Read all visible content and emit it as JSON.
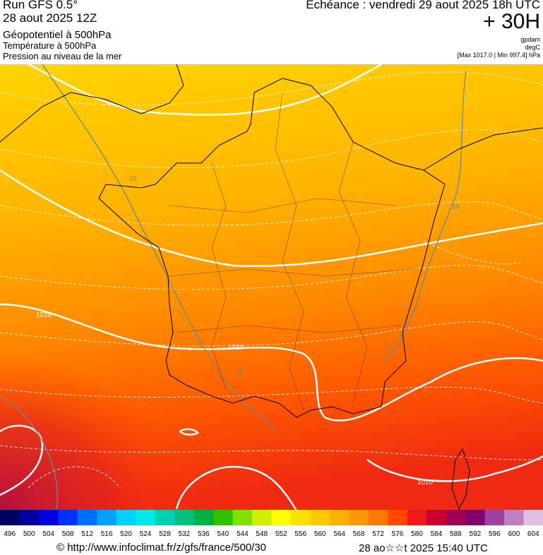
{
  "header": {
    "run": "Run GFS 0.5°",
    "date": "28 aout 2025 12Z",
    "field1": "Géopotentiel à 500hPa",
    "field2": "Température à 500hPa",
    "field3": "Pression au niveau de la mer",
    "valid": "Echéance : vendredi 29 aout 2025 18h UTC",
    "lead": "+ 30H",
    "unit1": "gpdam",
    "unit2": "degC",
    "unit3": "[Max 1017.0 | Min 997.4] hPa"
  },
  "map": {
    "contour_labels": [
      "1010",
      "1010",
      "1010",
      "16",
      "16",
      "16",
      "16"
    ]
  },
  "colorbar": {
    "ticks": [
      496,
      500,
      504,
      508,
      512,
      516,
      520,
      524,
      528,
      532,
      536,
      540,
      544,
      548,
      552,
      556,
      560,
      564,
      568,
      572,
      576,
      580,
      584,
      588,
      592,
      596,
      600,
      604
    ],
    "colors": [
      "#000060",
      "#0000a0",
      "#0000e0",
      "#0030ff",
      "#0070ff",
      "#00a0ff",
      "#00d0ff",
      "#00e8e8",
      "#00d0b0",
      "#00c080",
      "#00b040",
      "#30c000",
      "#80e000",
      "#d0f000",
      "#ffff00",
      "#ffe000",
      "#ffc800",
      "#ffb000",
      "#ff9800",
      "#ff7800",
      "#ff4800",
      "#f01818",
      "#c80030",
      "#a00050",
      "#800070",
      "#a040a0",
      "#c080c0",
      "#e0c0e0"
    ]
  },
  "footer": {
    "source": "© http://www.infoclimat.fr/z/gfs/france/500/30",
    "generated": "28 ao☆☆t 2025 15:40 UTC"
  }
}
